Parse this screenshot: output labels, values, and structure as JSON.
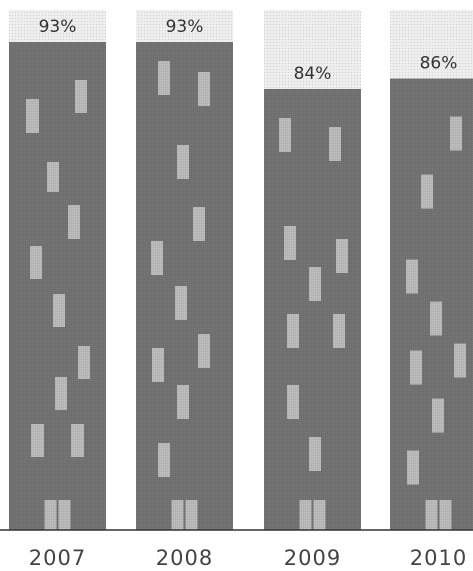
{
  "chart_data": {
    "type": "bar",
    "title": "",
    "xlabel": "",
    "ylabel": "",
    "categories": [
      "2007",
      "2008",
      "2009",
      "2010"
    ],
    "values": [
      93,
      93,
      84,
      86
    ],
    "value_labels": [
      "93%",
      "93%",
      "84%",
      "86%"
    ],
    "ylim": [
      0,
      100
    ],
    "grid": false,
    "legend": "none",
    "colors": {
      "bar": "#6b6b6b",
      "window": "#b5b5b5",
      "track": "#e9e9e9",
      "baseline": "#333333"
    }
  }
}
